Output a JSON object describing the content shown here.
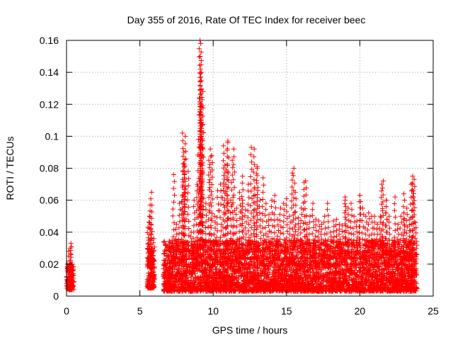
{
  "chart_data": {
    "type": "scatter",
    "title": "Day 355 of 2016, Rate Of TEC Index for receiver beec",
    "xlabel": "GPS time / hours",
    "ylabel": "ROTI / TECUs",
    "xlim": [
      0,
      25
    ],
    "ylim": [
      0,
      0.16
    ],
    "xticks": [
      "0",
      "5",
      "10",
      "15",
      "20",
      "25"
    ],
    "yticks": [
      "0",
      "0.02",
      "0.04",
      "0.06",
      "0.08",
      "0.1",
      "0.12",
      "0.14",
      "0.16"
    ],
    "grid": true,
    "marker": "+",
    "color": "#ff0000",
    "series": [
      {
        "values_note": "ROTI samples vs GPS hour",
        "x": [
          0.0,
          0.05,
          0.1,
          0.15,
          0.2,
          0.25,
          0.3,
          0.35,
          0.4,
          0.1,
          0.2,
          0.3,
          0.15,
          0.35,
          0.25,
          0.05,
          0.3,
          0.2,
          5.5,
          5.55,
          5.6,
          5.65,
          5.7,
          5.75,
          5.8,
          5.85,
          5.9,
          5.6,
          5.7,
          5.8,
          5.75,
          5.65,
          5.85,
          5.9,
          5.95,
          6.7,
          6.9,
          7.1,
          7.3,
          7.5,
          7.7,
          7.9,
          8.0,
          8.1,
          8.3,
          8.5,
          8.7,
          8.9,
          9.0,
          9.1,
          9.15,
          9.2,
          9.3,
          9.5,
          9.7,
          9.9,
          10.1,
          10.3,
          10.5,
          10.7,
          10.9,
          11.0,
          11.2,
          11.4,
          11.6,
          11.8,
          12.0,
          12.2,
          12.4,
          12.6,
          12.8,
          13.0,
          13.2,
          13.4,
          13.6,
          13.8,
          14.0,
          14.2,
          14.4,
          14.6,
          14.8,
          15.0,
          15.2,
          15.4,
          15.6,
          15.8,
          16.0,
          16.2,
          16.4,
          16.6,
          16.8,
          17.0,
          17.2,
          17.4,
          17.6,
          17.8,
          18.0,
          18.2,
          18.4,
          18.6,
          18.8,
          19.0,
          19.2,
          19.4,
          19.6,
          19.8,
          20.0,
          20.2,
          20.4,
          20.6,
          20.8,
          21.0,
          21.2,
          21.4,
          21.6,
          21.8,
          22.0,
          22.2,
          22.4,
          22.6,
          22.8,
          23.0,
          23.2,
          23.4,
          23.6,
          23.7,
          23.8,
          7.9,
          8.0,
          8.05,
          9.1,
          9.12,
          9.15,
          9.18,
          9.2,
          9.25,
          9.8,
          10.8,
          11.0,
          11.3,
          12.0,
          12.8,
          13.0,
          15.5,
          16.3,
          19.0,
          20.0,
          21.5,
          21.8,
          23.0,
          23.5,
          23.6,
          10.0,
          10.5,
          11.5,
          12.5,
          13.5,
          14.5,
          15.0,
          16.0,
          17.5,
          18.5
        ],
        "y": [
          0.012,
          0.02,
          0.008,
          0.025,
          0.015,
          0.03,
          0.033,
          0.018,
          0.01,
          0.006,
          0.022,
          0.012,
          0.028,
          0.009,
          0.004,
          0.016,
          0.026,
          0.011,
          0.02,
          0.043,
          0.035,
          0.05,
          0.057,
          0.025,
          0.065,
          0.03,
          0.015,
          0.01,
          0.018,
          0.008,
          0.045,
          0.028,
          0.022,
          0.012,
          0.036,
          0.02,
          0.015,
          0.03,
          0.076,
          0.045,
          0.058,
          0.063,
          0.083,
          0.1,
          0.078,
          0.04,
          0.06,
          0.07,
          0.098,
          0.12,
          0.158,
          0.14,
          0.128,
          0.058,
          0.085,
          0.088,
          0.05,
          0.066,
          0.07,
          0.094,
          0.079,
          0.097,
          0.06,
          0.092,
          0.055,
          0.065,
          0.06,
          0.054,
          0.07,
          0.093,
          0.067,
          0.08,
          0.06,
          0.074,
          0.058,
          0.051,
          0.06,
          0.063,
          0.048,
          0.055,
          0.058,
          0.061,
          0.05,
          0.077,
          0.065,
          0.049,
          0.055,
          0.071,
          0.045,
          0.05,
          0.058,
          0.048,
          0.047,
          0.045,
          0.05,
          0.058,
          0.04,
          0.047,
          0.048,
          0.045,
          0.044,
          0.06,
          0.055,
          0.058,
          0.05,
          0.047,
          0.063,
          0.055,
          0.05,
          0.052,
          0.05,
          0.05,
          0.045,
          0.05,
          0.072,
          0.06,
          0.05,
          0.035,
          0.062,
          0.045,
          0.05,
          0.052,
          0.055,
          0.048,
          0.07,
          0.073,
          0.046,
          0.102,
          0.09,
          0.082,
          0.16,
          0.15,
          0.137,
          0.12,
          0.118,
          0.107,
          0.092,
          0.082,
          0.096,
          0.085,
          0.075,
          0.092,
          0.081,
          0.08,
          0.072,
          0.062,
          0.063,
          0.07,
          0.06,
          0.064,
          0.07,
          0.075,
          0.01,
          0.012,
          0.015,
          0.018,
          0.014,
          0.016,
          0.013,
          0.017,
          0.012,
          0.014
        ]
      }
    ],
    "dense_bands": [
      {
        "x_range": [
          0.0,
          0.5
        ],
        "y_range": [
          0.004,
          0.02
        ]
      },
      {
        "x_range": [
          5.5,
          6.0
        ],
        "y_range": [
          0.005,
          0.03
        ]
      },
      {
        "x_range": [
          6.6,
          23.9
        ],
        "y_range": [
          0.003,
          0.035
        ]
      }
    ]
  }
}
